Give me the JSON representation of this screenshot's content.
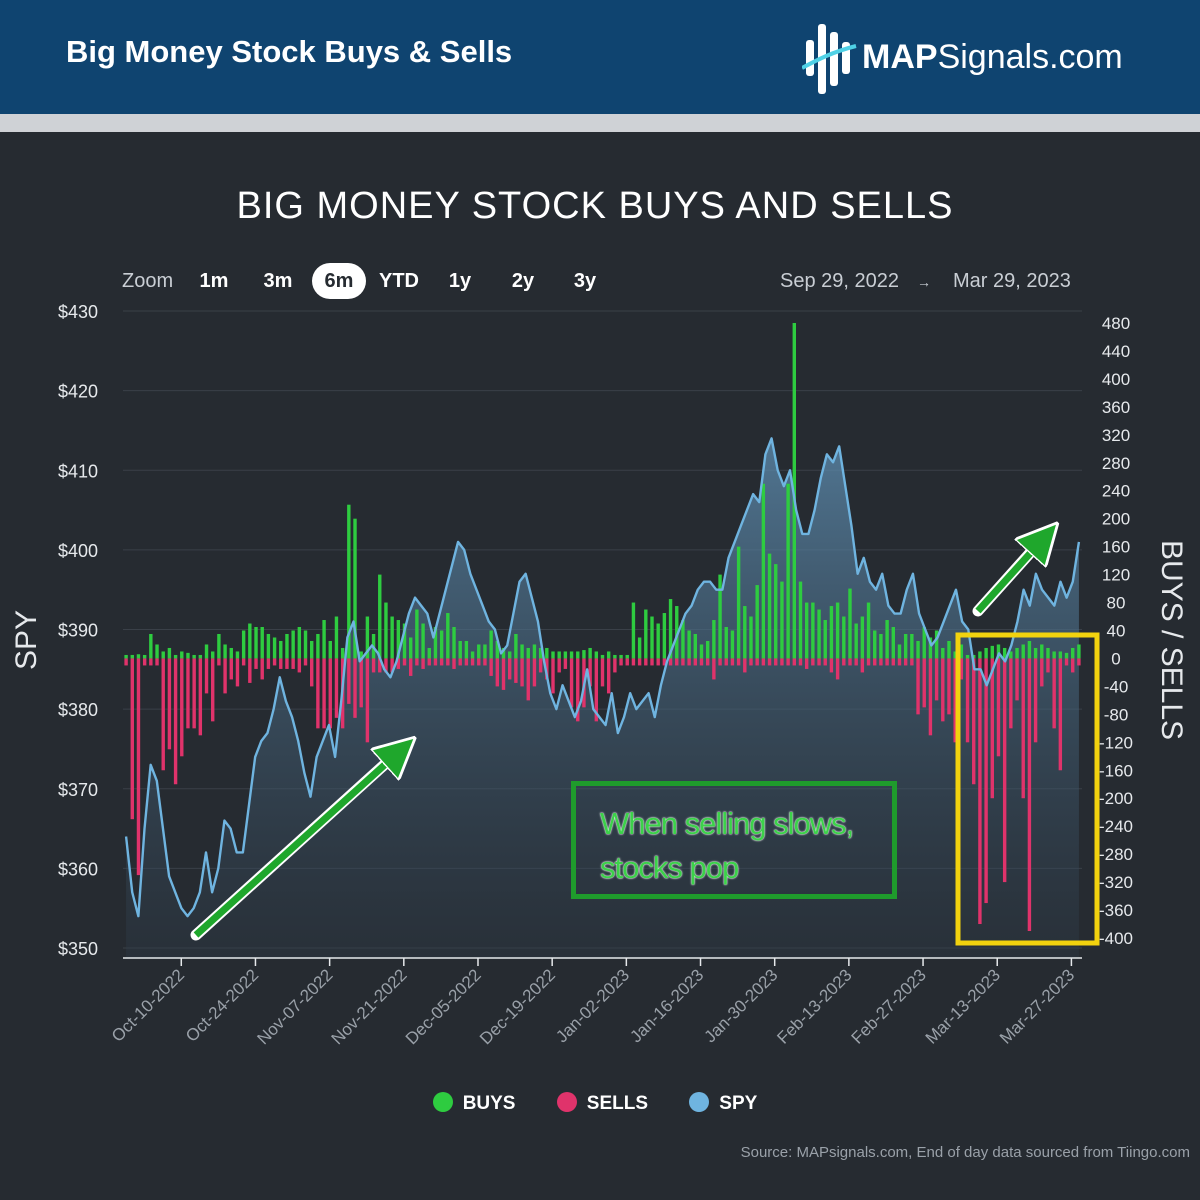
{
  "header": {
    "title": "Big Money Stock Buys & Sells",
    "logo_bold": "MAP",
    "logo_rest": "Signals.com"
  },
  "zoom": {
    "label": "Zoom",
    "options": [
      "1m",
      "3m",
      "6m",
      "YTD",
      "1y",
      "2y",
      "3y"
    ],
    "active": "6m",
    "range_from": "Sep 29, 2022",
    "range_arrow": "→",
    "range_to": "Mar 29, 2023"
  },
  "annotation": {
    "line1": "When selling slows,",
    "line2": "stocks pop"
  },
  "legend": {
    "buys": "BUYS",
    "sells": "SELLS",
    "spy": "SPY"
  },
  "source": "Source: MAPsignals.com, End of day data sourced from Tiingo.com",
  "colors": {
    "buys": "#2ecc40",
    "sells": "#e0336b",
    "spy": "#6fb4e0",
    "arrow": "#1fa72c",
    "highlight_box": "#f2d20e",
    "annotation_box": "#1f9b2c"
  },
  "chart_data": {
    "type": "bar+line",
    "title": "BIG MONEY STOCK BUYS AND SELLS",
    "y_left_label": "SPY",
    "y_right_label": "BUYS / SELLS",
    "y_left_ticks": [
      "$430",
      "$420",
      "$410",
      "$400",
      "$390",
      "$380",
      "$370",
      "$360",
      "$350"
    ],
    "y_left_range": [
      350,
      430
    ],
    "y_right_ticks": [
      "480",
      "440",
      "400",
      "360",
      "320",
      "280",
      "240",
      "200",
      "160",
      "120",
      "80",
      "40",
      "0",
      "-40",
      "-80",
      "-120",
      "-160",
      "-200",
      "-240",
      "-280",
      "-320",
      "-360",
      "-400"
    ],
    "y_right_range": [
      -400,
      480
    ],
    "x_ticks": [
      "Oct-10-2022",
      "Oct-24-2022",
      "Nov-07-2022",
      "Nov-21-2022",
      "Dec-05-2022",
      "Dec-19-2022",
      "Jan-02-2023",
      "Jan-16-2023",
      "Jan-30-2023",
      "Feb-13-2023",
      "Feb-27-2023",
      "Mar-13-2023",
      "Mar-27-2023"
    ],
    "x_range": [
      "2022-09-29",
      "2023-03-29"
    ],
    "series": [
      {
        "name": "BUYS",
        "values": [
          5,
          5,
          6,
          5,
          35,
          20,
          10,
          15,
          5,
          10,
          8,
          5,
          5,
          20,
          10,
          35,
          20,
          15,
          10,
          40,
          50,
          45,
          45,
          35,
          30,
          25,
          35,
          40,
          45,
          40,
          25,
          35,
          55,
          25,
          60,
          15,
          220,
          200,
          10,
          60,
          35,
          120,
          80,
          60,
          55,
          50,
          30,
          70,
          50,
          15,
          45,
          40,
          65,
          45,
          25,
          25,
          10,
          20,
          20,
          40,
          25,
          15,
          10,
          35,
          20,
          15,
          20,
          15,
          15,
          10,
          10,
          10,
          10,
          10,
          12,
          15,
          10,
          5,
          10,
          5,
          5,
          5,
          80,
          30,
          70,
          60,
          50,
          65,
          85,
          75,
          55,
          40,
          35,
          20,
          25,
          55,
          120,
          45,
          40,
          160,
          75,
          60,
          105,
          250,
          150,
          135,
          110,
          250,
          480,
          110,
          80,
          80,
          70,
          55,
          75,
          80,
          60,
          100,
          50,
          60,
          80,
          40,
          35,
          55,
          45,
          20,
          35,
          35,
          25,
          45,
          30,
          40,
          15,
          25,
          10,
          20,
          5,
          5,
          10,
          15,
          18,
          20,
          15,
          10,
          15,
          20,
          25,
          15,
          20,
          15,
          10,
          10,
          8,
          15,
          20
        ],
        "dates_from": "2022-09-29",
        "dates_to": "2023-03-29"
      },
      {
        "name": "SELLS",
        "values": [
          -10,
          -230,
          -310,
          -10,
          -10,
          -10,
          -160,
          -130,
          -180,
          -140,
          -100,
          -100,
          -110,
          -50,
          -90,
          -10,
          -50,
          -30,
          -40,
          -10,
          -35,
          -15,
          -30,
          -15,
          -10,
          -15,
          -15,
          -15,
          -20,
          -10,
          -40,
          -100,
          -100,
          -100,
          -85,
          -100,
          -65,
          -85,
          -70,
          -120,
          -20,
          -20,
          -20,
          -20,
          -15,
          -10,
          -25,
          -10,
          -15,
          -10,
          -10,
          -10,
          -10,
          -15,
          -10,
          -10,
          -10,
          -10,
          -10,
          -25,
          -40,
          -45,
          -30,
          -35,
          -40,
          -60,
          -40,
          -20,
          -30,
          -50,
          -20,
          -15,
          -70,
          -90,
          -70,
          -40,
          -90,
          -40,
          -50,
          -20,
          -10,
          -10,
          -10,
          -10,
          -10,
          -10,
          -10,
          -10,
          -10,
          -10,
          -10,
          -10,
          -10,
          -10,
          -10,
          -30,
          -10,
          -10,
          -10,
          -10,
          -20,
          -10,
          -10,
          -10,
          -10,
          -10,
          -10,
          -10,
          -10,
          -10,
          -15,
          -10,
          -10,
          -10,
          -20,
          -30,
          -10,
          -10,
          -10,
          -20,
          -10,
          -10,
          -10,
          -10,
          -10,
          -10,
          -10,
          -10,
          -80,
          -70,
          -110,
          -60,
          -90,
          -80,
          -120,
          -30,
          -120,
          -180,
          -380,
          -350,
          -200,
          -140,
          -320,
          -100,
          -60,
          -200,
          -390,
          -120,
          -40,
          -20,
          -100,
          -160,
          -10,
          -20,
          -10,
          -10
        ],
        "dates_from": "2022-09-29",
        "dates_to": "2023-03-29"
      },
      {
        "name": "SPY",
        "values": [
          364,
          357,
          354,
          365,
          373,
          371,
          365,
          359,
          357,
          355,
          354,
          355,
          357,
          362,
          357,
          360,
          366,
          365,
          362,
          362,
          368,
          374,
          376,
          377,
          380,
          384,
          381,
          379,
          376,
          372,
          369,
          374,
          376,
          378,
          374,
          381,
          389,
          391,
          386,
          387,
          388,
          387,
          385,
          384,
          386,
          389,
          392,
          394,
          393,
          392,
          389,
          392,
          395,
          398,
          401,
          400,
          397,
          395,
          393,
          391,
          390,
          387,
          388,
          392,
          396,
          397,
          394,
          391,
          386,
          382,
          380,
          383,
          381,
          379,
          381,
          385,
          380,
          379,
          378,
          382,
          377,
          379,
          382,
          380,
          381,
          382,
          379,
          383,
          386,
          388,
          390,
          392,
          393,
          395,
          396,
          396,
          395,
          395,
          399,
          401,
          403,
          405,
          407,
          406,
          412,
          414,
          410,
          408,
          410,
          405,
          402,
          402,
          405,
          409,
          412,
          411,
          413,
          408,
          403,
          397,
          399,
          396,
          395,
          397,
          393,
          392,
          392,
          395,
          397,
          392,
          390,
          388,
          389,
          391,
          393,
          395,
          391,
          390,
          385,
          385,
          383,
          385,
          387,
          386,
          388,
          391,
          395,
          393,
          397,
          395,
          394,
          393,
          396,
          394,
          396,
          401
        ],
        "dates_from": "2022-09-29",
        "dates_to": "2023-03-29"
      }
    ]
  }
}
